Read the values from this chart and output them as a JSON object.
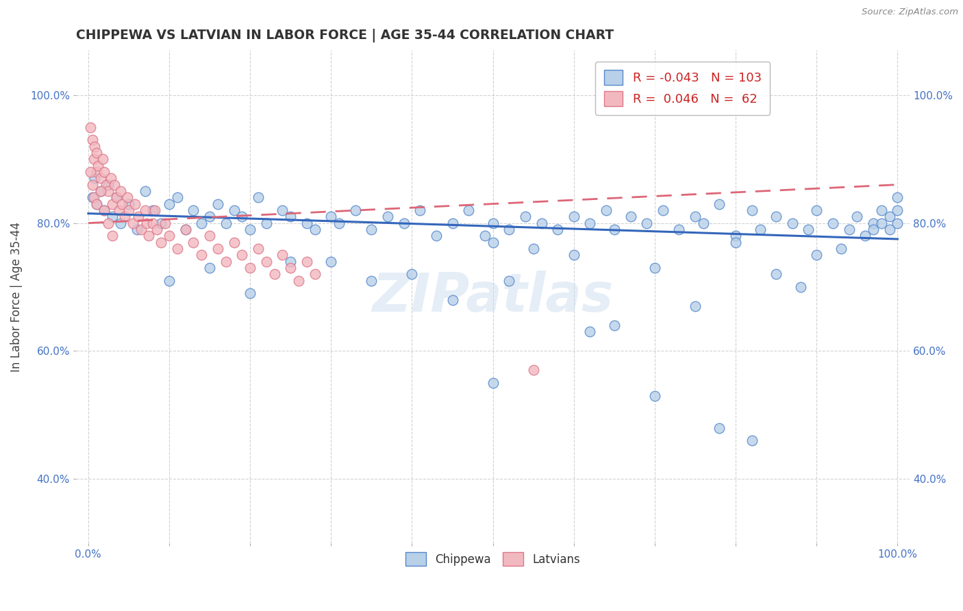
{
  "title": "CHIPPEWA VS LATVIAN IN LABOR FORCE | AGE 35-44 CORRELATION CHART",
  "source": "Source: ZipAtlas.com",
  "ylabel": "In Labor Force | Age 35-44",
  "xlim": [
    -0.015,
    1.015
  ],
  "ylim": [
    0.3,
    1.07
  ],
  "xtick_positions": [
    0.0,
    0.1,
    0.2,
    0.3,
    0.4,
    0.5,
    0.6,
    0.7,
    0.8,
    0.9,
    1.0
  ],
  "xtick_labels_shown": {
    "0.0": "0.0%",
    "1.0": "100.0%"
  },
  "ytick_positions": [
    0.4,
    0.6,
    0.8,
    1.0
  ],
  "ytick_labels": [
    "40.0%",
    "60.0%",
    "80.0%",
    "100.0%"
  ],
  "R_chippewa": -0.043,
  "N_chippewa": 103,
  "R_latvian": 0.046,
  "N_latvian": 62,
  "chippewa_fill": "#b8d0e8",
  "latvian_fill": "#f2b8c0",
  "chippewa_edge": "#5588cc",
  "latvian_edge": "#dd7788",
  "chippewa_line_color": "#3366bb",
  "latvian_line_color": "#dd6677",
  "watermark": "ZIPatlas",
  "chippewa_x": [
    0.005,
    0.008,
    0.01,
    0.015,
    0.02,
    0.025,
    0.03,
    0.035,
    0.04,
    0.05,
    0.06,
    0.07,
    0.08,
    0.09,
    0.1,
    0.11,
    0.12,
    0.13,
    0.14,
    0.15,
    0.16,
    0.17,
    0.18,
    0.19,
    0.2,
    0.21,
    0.22,
    0.24,
    0.25,
    0.27,
    0.28,
    0.3,
    0.31,
    0.33,
    0.35,
    0.37,
    0.39,
    0.41,
    0.43,
    0.45,
    0.47,
    0.49,
    0.5,
    0.52,
    0.54,
    0.56,
    0.58,
    0.6,
    0.62,
    0.64,
    0.65,
    0.67,
    0.69,
    0.71,
    0.73,
    0.75,
    0.76,
    0.78,
    0.8,
    0.82,
    0.83,
    0.85,
    0.87,
    0.89,
    0.9,
    0.92,
    0.94,
    0.95,
    0.97,
    0.98,
    0.99,
    1.0,
    1.0,
    1.0,
    0.5,
    0.4,
    0.3,
    0.2,
    0.15,
    0.1,
    0.6,
    0.7,
    0.55,
    0.45,
    0.35,
    0.25,
    0.8,
    0.85,
    0.9,
    0.88,
    0.93,
    0.96,
    0.97,
    0.98,
    0.99,
    0.5,
    0.65,
    0.75,
    0.82,
    0.7,
    0.78,
    0.62,
    0.52
  ],
  "chippewa_y": [
    0.84,
    0.87,
    0.83,
    0.85,
    0.82,
    0.86,
    0.81,
    0.84,
    0.8,
    0.83,
    0.79,
    0.85,
    0.82,
    0.8,
    0.83,
    0.84,
    0.79,
    0.82,
    0.8,
    0.81,
    0.83,
    0.8,
    0.82,
    0.81,
    0.79,
    0.84,
    0.8,
    0.82,
    0.81,
    0.8,
    0.79,
    0.81,
    0.8,
    0.82,
    0.79,
    0.81,
    0.8,
    0.82,
    0.78,
    0.8,
    0.82,
    0.78,
    0.8,
    0.79,
    0.81,
    0.8,
    0.79,
    0.81,
    0.8,
    0.82,
    0.79,
    0.81,
    0.8,
    0.82,
    0.79,
    0.81,
    0.8,
    0.83,
    0.78,
    0.82,
    0.79,
    0.81,
    0.8,
    0.79,
    0.82,
    0.8,
    0.79,
    0.81,
    0.8,
    0.82,
    0.79,
    0.84,
    0.82,
    0.8,
    0.77,
    0.72,
    0.74,
    0.69,
    0.73,
    0.71,
    0.75,
    0.73,
    0.76,
    0.68,
    0.71,
    0.74,
    0.77,
    0.72,
    0.75,
    0.7,
    0.76,
    0.78,
    0.79,
    0.8,
    0.81,
    0.55,
    0.64,
    0.67,
    0.46,
    0.53,
    0.48,
    0.63,
    0.71
  ],
  "latvian_x": [
    0.003,
    0.005,
    0.007,
    0.008,
    0.01,
    0.01,
    0.012,
    0.015,
    0.018,
    0.02,
    0.022,
    0.025,
    0.028,
    0.03,
    0.032,
    0.035,
    0.038,
    0.04,
    0.042,
    0.045,
    0.048,
    0.05,
    0.055,
    0.058,
    0.062,
    0.065,
    0.07,
    0.072,
    0.075,
    0.08,
    0.082,
    0.085,
    0.09,
    0.095,
    0.1,
    0.11,
    0.12,
    0.13,
    0.14,
    0.15,
    0.16,
    0.17,
    0.18,
    0.19,
    0.2,
    0.21,
    0.22,
    0.23,
    0.24,
    0.25,
    0.26,
    0.27,
    0.28,
    0.003,
    0.005,
    0.007,
    0.01,
    0.015,
    0.02,
    0.025,
    0.03,
    0.55
  ],
  "latvian_y": [
    0.95,
    0.93,
    0.9,
    0.92,
    0.88,
    0.91,
    0.89,
    0.87,
    0.9,
    0.88,
    0.86,
    0.85,
    0.87,
    0.83,
    0.86,
    0.84,
    0.82,
    0.85,
    0.83,
    0.81,
    0.84,
    0.82,
    0.8,
    0.83,
    0.81,
    0.79,
    0.82,
    0.8,
    0.78,
    0.8,
    0.82,
    0.79,
    0.77,
    0.8,
    0.78,
    0.76,
    0.79,
    0.77,
    0.75,
    0.78,
    0.76,
    0.74,
    0.77,
    0.75,
    0.73,
    0.76,
    0.74,
    0.72,
    0.75,
    0.73,
    0.71,
    0.74,
    0.72,
    0.88,
    0.86,
    0.84,
    0.83,
    0.85,
    0.82,
    0.8,
    0.78,
    0.57
  ]
}
